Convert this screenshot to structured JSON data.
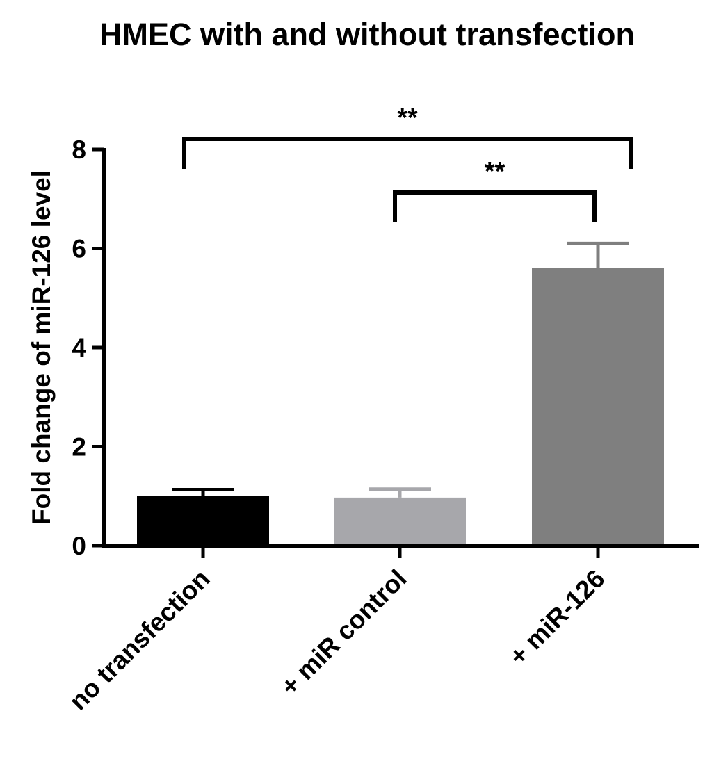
{
  "chart_data": {
    "type": "bar",
    "title": "HMEC with and without transfection",
    "xlabel": "",
    "ylabel": "Fold change of miR-126 level",
    "categories": [
      "no transfection",
      "+ miR control",
      "+ miR-126"
    ],
    "values": [
      1.0,
      0.97,
      5.6
    ],
    "errors": [
      0.13,
      0.17,
      0.5
    ],
    "colors": [
      "#000000",
      "#a7a7ab",
      "#7f7f7f"
    ],
    "ylim": [
      0,
      8
    ],
    "yticks": [
      0,
      2,
      4,
      6,
      8
    ],
    "ytick_labels": [
      "0",
      "2",
      "4",
      "6",
      "8"
    ],
    "grid": false,
    "legend": "none",
    "significance": [
      {
        "from": 0,
        "to": 2,
        "label": "**",
        "level": 8.0
      },
      {
        "from": 1,
        "to": 2,
        "label": "**",
        "level": 7.0
      }
    ]
  }
}
